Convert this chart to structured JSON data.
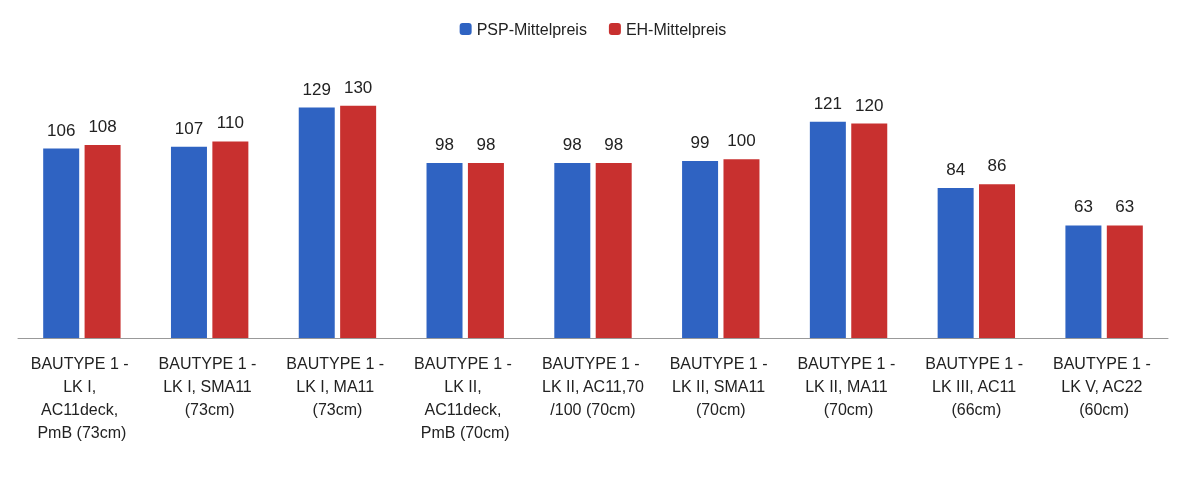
{
  "chart_data": {
    "type": "bar",
    "categories": [
      "BAUTYPE 1 - LK I, AC11deck, PmB (73cm)",
      "BAUTYPE 1 - LK I, SMA11 (73cm)",
      "BAUTYPE 1 - LK I, MA11 (73cm)",
      "BAUTYPE 1 - LK II, AC11deck, PmB (70cm)",
      "BAUTYPE 1 - LK II, AC11,70/100 (70cm)",
      "BAUTYPE 1 - LK II, SMA11 (70cm)",
      "BAUTYPE 1 - LK II, MA11 (70cm)",
      "BAUTYPE 1 - LK III, AC11 (66cm)",
      "BAUTYPE 1 - LK V, AC22 (60cm)"
    ],
    "series": [
      {
        "name": "PSP-Mittelpreis",
        "color": "#2f63c2",
        "values": [
          106,
          107,
          129,
          98,
          98,
          99,
          121,
          84,
          63
        ]
      },
      {
        "name": "EH-Mittelpreis",
        "color": "#c8302f",
        "values": [
          108,
          110,
          130,
          98,
          98,
          100,
          120,
          86,
          63
        ]
      }
    ],
    "data_labels": true,
    "legend": "top"
  }
}
